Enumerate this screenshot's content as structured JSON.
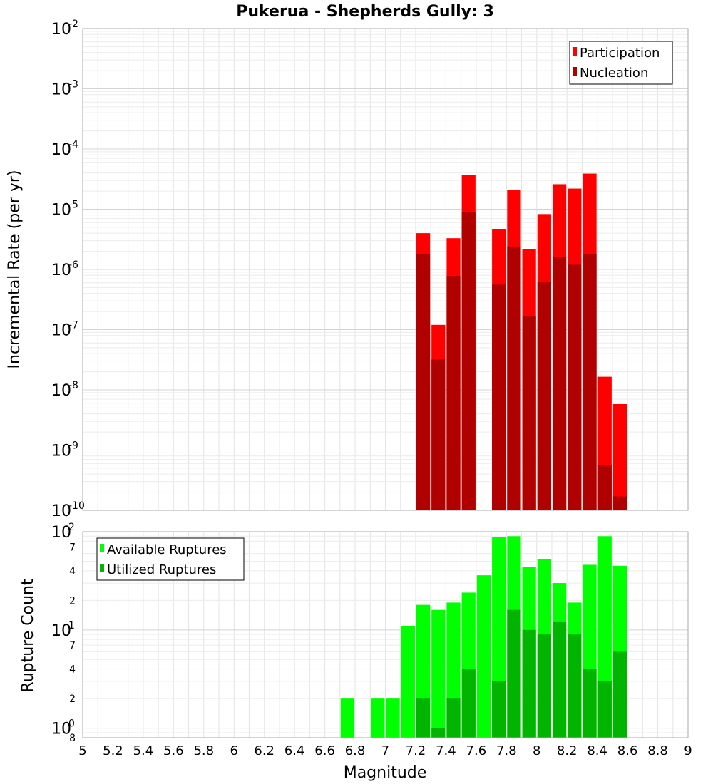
{
  "chart_data": [
    {
      "type": "bar",
      "title": "Pukerua - Shepherds Gully: 3",
      "xlabel": "",
      "ylabel": "Incremental Rate (per yr)",
      "yscale": "log",
      "xlim": [
        5,
        9
      ],
      "ylim": [
        1e-10,
        0.01
      ],
      "grid": true,
      "legend_position": "top-right",
      "bin_width": 0.1,
      "y_ticks": [
        {
          "base": "10",
          "exp": "-10",
          "value": 1e-10
        },
        {
          "base": "10",
          "exp": "-9",
          "value": 1e-09
        },
        {
          "base": "10",
          "exp": "-8",
          "value": 1e-08
        },
        {
          "base": "10",
          "exp": "-7",
          "value": 1e-07
        },
        {
          "base": "10",
          "exp": "-6",
          "value": 1e-06
        },
        {
          "base": "10",
          "exp": "-5",
          "value": 1e-05
        },
        {
          "base": "10",
          "exp": "-4",
          "value": 0.0001
        },
        {
          "base": "10",
          "exp": "-3",
          "value": 0.001
        },
        {
          "base": "10",
          "exp": "-2",
          "value": 0.01
        }
      ],
      "x": [
        7.25,
        7.35,
        7.45,
        7.55,
        7.75,
        7.85,
        7.95,
        8.05,
        8.15,
        8.25,
        8.35,
        8.45,
        8.55
      ],
      "series": [
        {
          "name": "Participation",
          "color": "#ff0000",
          "values": [
            4e-06,
            1.2e-07,
            3.3e-06,
            3.7e-05,
            4.7e-06,
            2.1e-05,
            2.2e-06,
            8.3e-06,
            2.6e-05,
            2.2e-05,
            3.9e-05,
            1.65e-08,
            5.8e-09
          ]
        },
        {
          "name": "Nucleation",
          "color": "#b00000",
          "values": [
            1.8e-06,
            3.2e-08,
            7.8e-07,
            9e-06,
            5.6e-07,
            2.4e-06,
            1.7e-07,
            6.3e-07,
            1.6e-06,
            1.2e-06,
            1.8e-06,
            5.6e-10,
            1.7e-10
          ]
        }
      ]
    },
    {
      "type": "bar",
      "title": "",
      "xlabel": "Magnitude",
      "ylabel": "Rupture Count",
      "yscale": "log",
      "xlim": [
        5,
        9
      ],
      "ylim": [
        0.8,
        100
      ],
      "grid": true,
      "legend_position": "top-left",
      "bin_width": 0.1,
      "x_ticks": [
        "5",
        "5.2",
        "5.4",
        "5.6",
        "5.8",
        "6",
        "6.2",
        "6.4",
        "6.6",
        "6.8",
        "7",
        "7.2",
        "7.4",
        "7.6",
        "7.8",
        "8",
        "8.2",
        "8.4",
        "8.6",
        "8.8",
        "9"
      ],
      "y_major_ticks": [
        {
          "base": "10",
          "exp": "0",
          "value": 1
        },
        {
          "base": "10",
          "exp": "1",
          "value": 10
        },
        {
          "base": "10",
          "exp": "2",
          "value": 100
        }
      ],
      "y_minor_ticks": [
        {
          "label": "8",
          "value": 0.8
        },
        {
          "label": "2",
          "value": 2
        },
        {
          "label": "4",
          "value": 4
        },
        {
          "label": "7",
          "value": 7
        },
        {
          "label": "2",
          "value": 20
        },
        {
          "label": "4",
          "value": 40
        },
        {
          "label": "7",
          "value": 70
        }
      ],
      "x": [
        6.75,
        6.95,
        7.05,
        7.15,
        7.25,
        7.35,
        7.45,
        7.55,
        7.65,
        7.75,
        7.85,
        7.95,
        8.05,
        8.15,
        8.25,
        8.35,
        8.45,
        8.55
      ],
      "series": [
        {
          "name": "Available Ruptures",
          "color": "#00ff00",
          "values": [
            2,
            2,
            2,
            11,
            18,
            16,
            19,
            24,
            36,
            88,
            90,
            44,
            53,
            30,
            19,
            46,
            90,
            45
          ]
        },
        {
          "name": "Utilized Ruptures",
          "color": "#00b400",
          "values": [
            null,
            null,
            null,
            null,
            2,
            1,
            2,
            4,
            null,
            3,
            16,
            10,
            9,
            12,
            9,
            4,
            3,
            6
          ]
        }
      ]
    }
  ]
}
